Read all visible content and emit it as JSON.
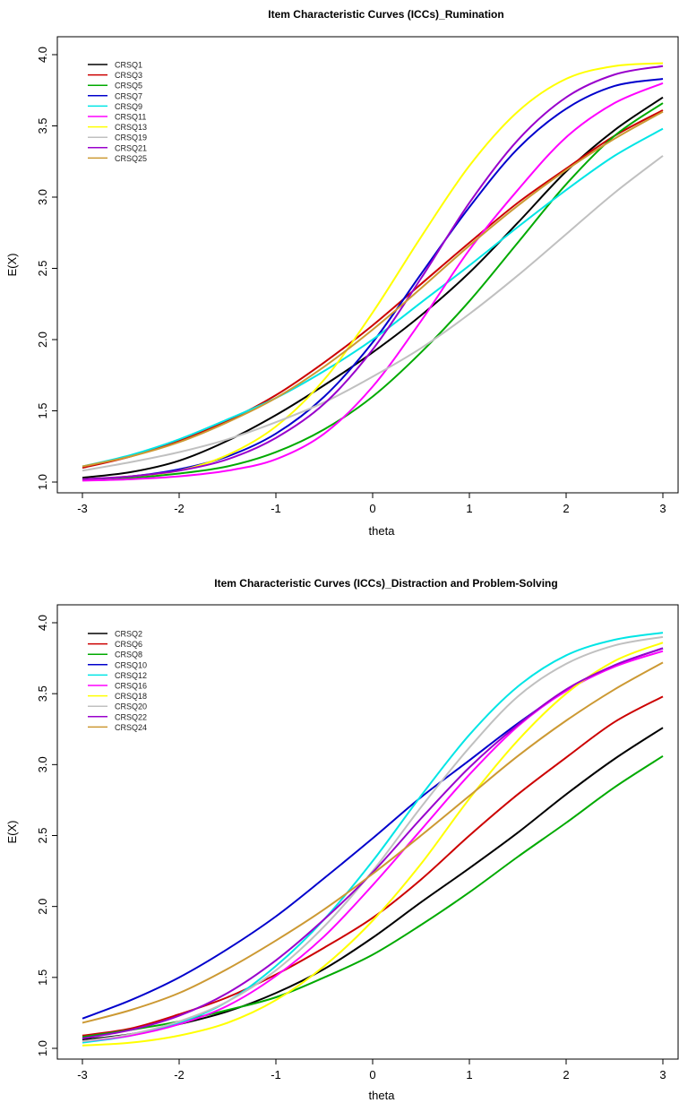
{
  "chart_data": [
    {
      "type": "line",
      "title": "Item Characteristic Curves (ICCs)_Rumination",
      "xlabel": "theta",
      "ylabel": "E(X)",
      "xlim": [
        -3,
        3
      ],
      "ylim": [
        1.0,
        4.0
      ],
      "x_ticks": [
        "-3",
        "-2",
        "-1",
        "0",
        "1",
        "2",
        "3"
      ],
      "y_ticks": [
        "1.0",
        "1.5",
        "2.0",
        "2.5",
        "3.0",
        "3.5",
        "4.0"
      ],
      "legend_position": "top-left",
      "x": [
        -3,
        -2.5,
        -2,
        -1.5,
        -1,
        -0.5,
        0,
        0.5,
        1,
        1.5,
        2,
        2.5,
        3
      ],
      "series": [
        {
          "name": "CRSQ1",
          "color": "#000000",
          "values": [
            1.03,
            1.07,
            1.15,
            1.29,
            1.47,
            1.68,
            1.91,
            2.17,
            2.47,
            2.82,
            3.18,
            3.47,
            3.7
          ]
        },
        {
          "name": "CRSQ3",
          "color": "#cc0000",
          "values": [
            1.1,
            1.18,
            1.29,
            1.43,
            1.61,
            1.84,
            2.1,
            2.39,
            2.68,
            2.96,
            3.2,
            3.43,
            3.61
          ]
        },
        {
          "name": "CRSQ5",
          "color": "#00aa00",
          "values": [
            1.02,
            1.03,
            1.06,
            1.11,
            1.21,
            1.37,
            1.6,
            1.91,
            2.27,
            2.68,
            3.09,
            3.43,
            3.66
          ]
        },
        {
          "name": "CRSQ7",
          "color": "#0000cc",
          "values": [
            1.02,
            1.04,
            1.09,
            1.18,
            1.34,
            1.6,
            1.98,
            2.46,
            2.93,
            3.34,
            3.62,
            3.78,
            3.83
          ]
        },
        {
          "name": "CRSQ9",
          "color": "#00e5e5",
          "values": [
            1.11,
            1.19,
            1.3,
            1.44,
            1.59,
            1.78,
            2.0,
            2.26,
            2.52,
            2.79,
            3.05,
            3.29,
            3.48
          ]
        },
        {
          "name": "CRSQ11",
          "color": "#ff00ff",
          "values": [
            1.01,
            1.02,
            1.04,
            1.08,
            1.16,
            1.34,
            1.67,
            2.13,
            2.63,
            3.05,
            3.42,
            3.66,
            3.8
          ]
        },
        {
          "name": "CRSQ13",
          "color": "#ffff00",
          "values": [
            1.02,
            1.04,
            1.08,
            1.19,
            1.39,
            1.72,
            2.19,
            2.72,
            3.22,
            3.6,
            3.83,
            3.92,
            3.94
          ]
        },
        {
          "name": "CRSQ19",
          "color": "#c0c0c0",
          "values": [
            1.08,
            1.14,
            1.21,
            1.3,
            1.42,
            1.56,
            1.74,
            1.94,
            2.18,
            2.45,
            2.74,
            3.03,
            3.29
          ]
        },
        {
          "name": "CRSQ21",
          "color": "#9900cc",
          "values": [
            1.02,
            1.04,
            1.08,
            1.16,
            1.31,
            1.55,
            1.93,
            2.43,
            2.96,
            3.4,
            3.7,
            3.86,
            3.92
          ]
        },
        {
          "name": "CRSQ25",
          "color": "#cc9933",
          "values": [
            1.11,
            1.18,
            1.28,
            1.42,
            1.59,
            1.81,
            2.07,
            2.36,
            2.66,
            2.94,
            3.19,
            3.41,
            3.6
          ]
        }
      ]
    },
    {
      "type": "line",
      "title": "Item Characteristic Curves (ICCs)_Distraction and Problem-Solving",
      "xlabel": "theta",
      "ylabel": "E(X)",
      "xlim": [
        -3,
        3
      ],
      "ylim": [
        1.0,
        4.0
      ],
      "x_ticks": [
        "-3",
        "-2",
        "-1",
        "0",
        "1",
        "2",
        "3"
      ],
      "y_ticks": [
        "1.0",
        "1.5",
        "2.0",
        "2.5",
        "3.0",
        "3.5",
        "4.0"
      ],
      "legend_position": "top-left",
      "x": [
        -3,
        -2.5,
        -2,
        -1.5,
        -1,
        -0.5,
        0,
        0.5,
        1,
        1.5,
        2,
        2.5,
        3
      ],
      "series": [
        {
          "name": "CRSQ2",
          "color": "#000000",
          "values": [
            1.06,
            1.1,
            1.17,
            1.26,
            1.39,
            1.56,
            1.78,
            2.03,
            2.27,
            2.52,
            2.79,
            3.04,
            3.26
          ]
        },
        {
          "name": "CRSQ6",
          "color": "#cc0000",
          "values": [
            1.09,
            1.14,
            1.24,
            1.36,
            1.52,
            1.71,
            1.92,
            2.19,
            2.5,
            2.79,
            3.05,
            3.3,
            3.48
          ]
        },
        {
          "name": "CRSQ8",
          "color": "#00aa00",
          "values": [
            1.08,
            1.13,
            1.19,
            1.27,
            1.36,
            1.5,
            1.66,
            1.87,
            2.1,
            2.35,
            2.59,
            2.84,
            3.06
          ]
        },
        {
          "name": "CRSQ10",
          "color": "#0000cc",
          "values": [
            1.21,
            1.34,
            1.5,
            1.7,
            1.93,
            2.2,
            2.48,
            2.77,
            3.03,
            3.29,
            3.52,
            3.7,
            3.82
          ]
        },
        {
          "name": "CRSQ12",
          "color": "#00e5e5",
          "values": [
            1.04,
            1.09,
            1.18,
            1.33,
            1.58,
            1.91,
            2.32,
            2.78,
            3.21,
            3.55,
            3.77,
            3.88,
            3.93
          ]
        },
        {
          "name": "CRSQ16",
          "color": "#ff00ff",
          "values": [
            1.05,
            1.09,
            1.17,
            1.3,
            1.51,
            1.79,
            2.15,
            2.54,
            2.93,
            3.27,
            3.52,
            3.69,
            3.8
          ]
        },
        {
          "name": "CRSQ18",
          "color": "#ffff00",
          "values": [
            1.02,
            1.04,
            1.09,
            1.18,
            1.34,
            1.58,
            1.9,
            2.3,
            2.76,
            3.17,
            3.5,
            3.73,
            3.86
          ]
        },
        {
          "name": "CRSQ20",
          "color": "#c0c0c0",
          "values": [
            1.05,
            1.1,
            1.19,
            1.33,
            1.55,
            1.86,
            2.25,
            2.7,
            3.12,
            3.48,
            3.71,
            3.84,
            3.9
          ]
        },
        {
          "name": "CRSQ22",
          "color": "#9900cc",
          "values": [
            1.07,
            1.13,
            1.23,
            1.39,
            1.62,
            1.91,
            2.24,
            2.62,
            2.98,
            3.28,
            3.53,
            3.7,
            3.82
          ]
        },
        {
          "name": "CRSQ24",
          "color": "#cc9933",
          "values": [
            1.18,
            1.27,
            1.39,
            1.56,
            1.76,
            1.98,
            2.23,
            2.5,
            2.78,
            3.06,
            3.31,
            3.53,
            3.72
          ]
        }
      ]
    }
  ]
}
